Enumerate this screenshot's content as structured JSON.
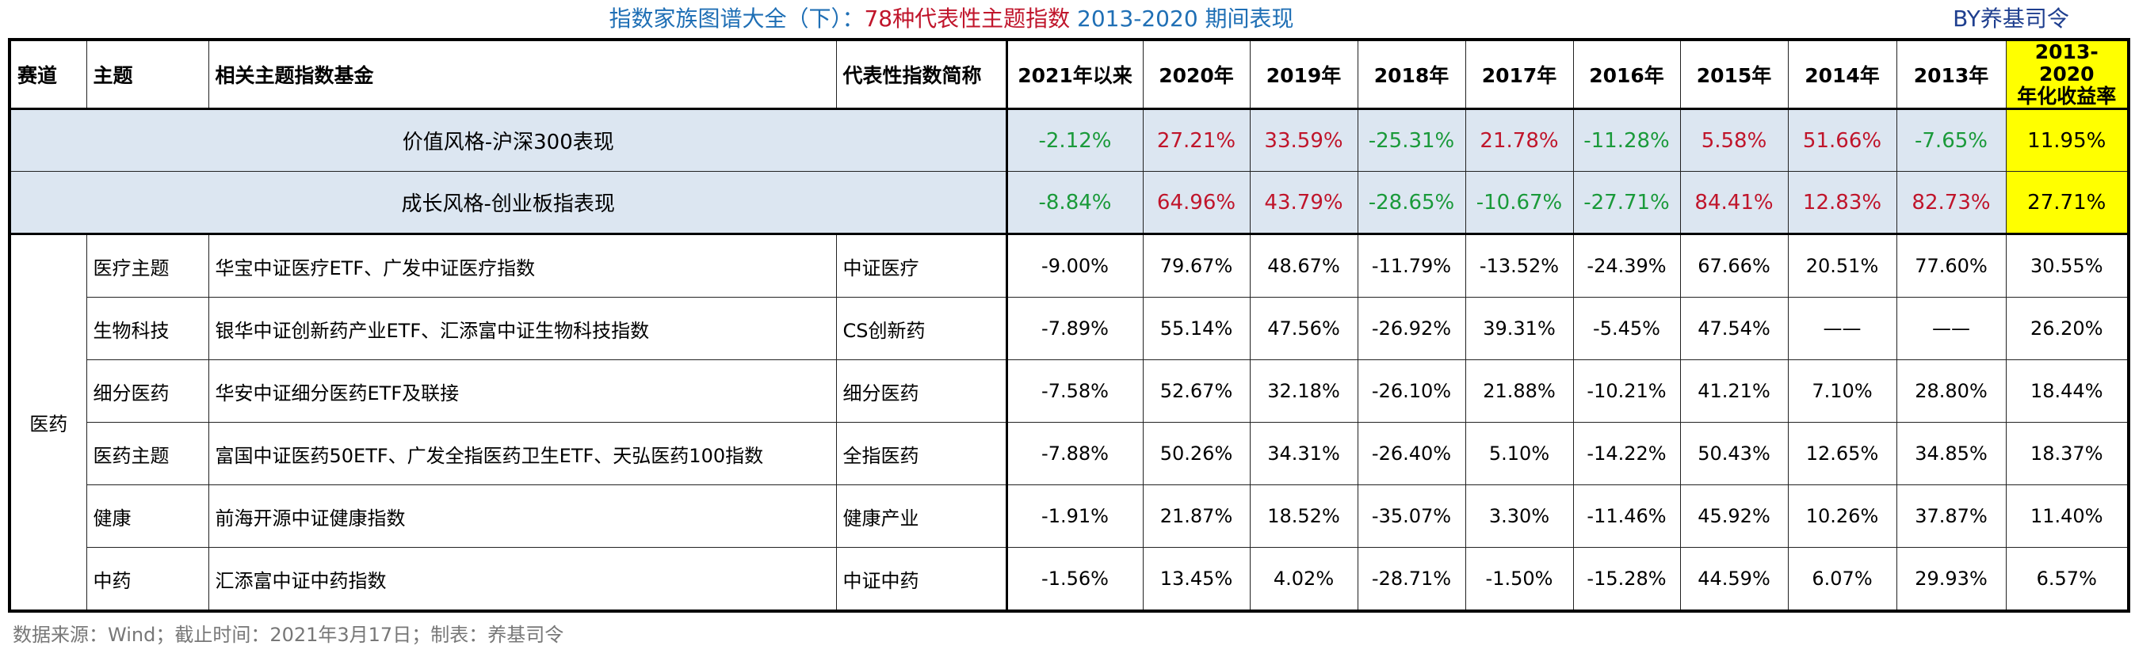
{
  "title": {
    "part1": "指数家族图谱大全（下）：",
    "part2": "78种代表性主题指数",
    "part3": " 2013-2020 期间表现",
    "author": "BY养基司令"
  },
  "table": {
    "header": [
      "赛道",
      "主题",
      "相关主题指数基金",
      "代表性指数简称",
      "2021年以来",
      "2020年",
      "2019年",
      "2018年",
      "2017年",
      "2016年",
      "2015年",
      "2014年",
      "2013年",
      "2013-2020\n年化收益率"
    ],
    "summary": [
      {
        "label": "价值风格-沪深300表现",
        "values": [
          "-2.12%",
          "27.21%",
          "33.59%",
          "-25.31%",
          "21.78%",
          "-11.28%",
          "5.58%",
          "51.66%",
          "-7.65%",
          "11.95%"
        ]
      },
      {
        "label": "成长风格-创业板指表现",
        "values": [
          "-8.84%",
          "64.96%",
          "43.79%",
          "-28.65%",
          "-10.67%",
          "-27.71%",
          "84.41%",
          "12.83%",
          "82.73%",
          "27.71%"
        ]
      }
    ],
    "sector": "医药",
    "rows": [
      {
        "theme": "医疗主题",
        "funds": "华宝中证医疗ETF、广发中证医疗指数",
        "index": "中证医疗",
        "values": [
          "-9.00%",
          "79.67%",
          "48.67%",
          "-11.79%",
          "-13.52%",
          "-24.39%",
          "67.66%",
          "20.51%",
          "77.60%",
          "30.55%"
        ]
      },
      {
        "theme": "生物科技",
        "funds": "银华中证创新药产业ETF、汇添富中证生物科技指数",
        "index": "CS创新药",
        "values": [
          "-7.89%",
          "55.14%",
          "47.56%",
          "-26.92%",
          "39.31%",
          "-5.45%",
          "47.54%",
          "——",
          "——",
          "26.20%"
        ]
      },
      {
        "theme": "细分医药",
        "funds": "华安中证细分医药ETF及联接",
        "index": "细分医药",
        "values": [
          "-7.58%",
          "52.67%",
          "32.18%",
          "-26.10%",
          "21.88%",
          "-10.21%",
          "41.21%",
          "7.10%",
          "28.80%",
          "18.44%"
        ]
      },
      {
        "theme": "医药主题",
        "funds": "富国中证医药50ETF、广发全指医药卫生ETF、天弘医药100指数",
        "index": "全指医药",
        "values": [
          "-7.88%",
          "50.26%",
          "34.31%",
          "-26.40%",
          "5.10%",
          "-14.22%",
          "50.43%",
          "12.65%",
          "34.85%",
          "18.37%"
        ]
      },
      {
        "theme": "健康",
        "funds": "前海开源中证健康指数",
        "index": "健康产业",
        "values": [
          "-1.91%",
          "21.87%",
          "18.52%",
          "-35.07%",
          "3.30%",
          "-11.46%",
          "45.92%",
          "10.26%",
          "37.87%",
          "11.40%"
        ]
      },
      {
        "theme": "中药",
        "funds": "汇添富中证中药指数",
        "index": "中证中药",
        "values": [
          "-1.56%",
          "13.45%",
          "4.02%",
          "-28.71%",
          "-1.50%",
          "-15.28%",
          "44.59%",
          "6.07%",
          "29.93%",
          "6.57%"
        ]
      }
    ]
  },
  "footer": "数据来源：Wind；截止时间：2021年3月17日；制表：养基司令"
}
